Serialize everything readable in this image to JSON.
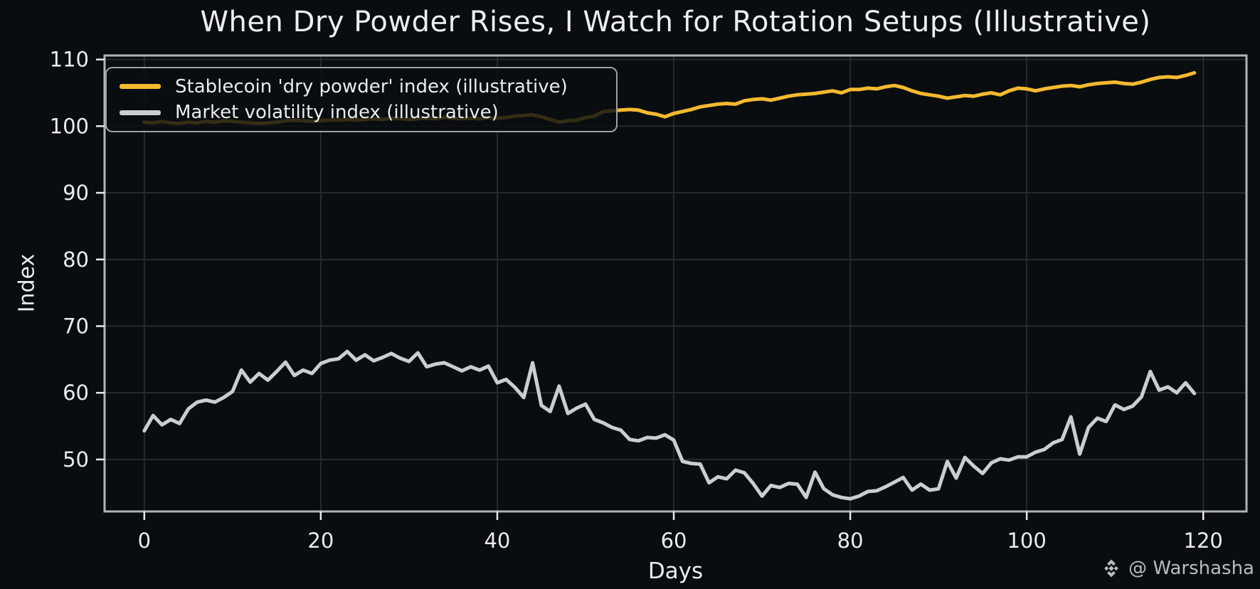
{
  "watermark": {
    "handle": "@ Warshasha",
    "icon": "binance-diamond-icon"
  },
  "colors": {
    "background": "#0a0d10",
    "grid": "#2a2f36",
    "spine": "#aeb4bc",
    "tick": "#e6e9ed",
    "text": "#e9ecef",
    "title": "#eceff2",
    "dry_powder_line": "#f3ba2f",
    "volatility_line": "#c9ced4",
    "watermark": "#b6bcc4",
    "legend_border": "#9aa1a9"
  },
  "chart_data": {
    "type": "line",
    "title": "When Dry Powder Rises, I Watch for Rotation Setups (Illustrative)",
    "xlabel": "Days",
    "ylabel": "Index",
    "x_ticks": [
      0,
      20,
      40,
      60,
      80,
      100,
      120
    ],
    "y_ticks": [
      50,
      60,
      70,
      80,
      90,
      100,
      110
    ],
    "x_range": [
      0,
      119
    ],
    "xlim": [
      -4.5,
      124.9
    ],
    "ylim": [
      42.2,
      110.6
    ],
    "grid": true,
    "legend_position": "upper-left",
    "series": [
      {
        "name": "Stablecoin 'dry powder' index (illustrative)",
        "color": "#f3ba2f",
        "values": [
          100.6,
          100.5,
          100.7,
          100.5,
          100.4,
          100.6,
          100.5,
          100.7,
          100.6,
          100.8,
          100.7,
          100.6,
          100.5,
          100.4,
          100.5,
          100.6,
          100.8,
          100.9,
          100.8,
          100.7,
          100.8,
          100.9,
          100.9,
          101.0,
          100.9,
          101.0,
          101.1,
          101.0,
          101.2,
          101.1,
          101.0,
          101.1,
          101.2,
          101.1,
          101.3,
          101.2,
          101.1,
          101.2,
          101.1,
          101.3,
          101.2,
          101.3,
          101.5,
          101.6,
          101.7,
          101.4,
          101.0,
          100.6,
          100.8,
          100.9,
          101.3,
          101.5,
          102.2,
          102.3,
          102.4,
          102.5,
          102.4,
          102.0,
          101.8,
          101.4,
          101.9,
          102.2,
          102.5,
          102.9,
          103.1,
          103.3,
          103.4,
          103.3,
          103.8,
          104.0,
          104.1,
          103.9,
          104.2,
          104.5,
          104.7,
          104.8,
          104.9,
          105.1,
          105.3,
          105.0,
          105.5,
          105.5,
          105.7,
          105.6,
          105.9,
          106.1,
          105.8,
          105.3,
          104.9,
          104.7,
          104.5,
          104.2,
          104.4,
          104.6,
          104.5,
          104.8,
          105.0,
          104.7,
          105.3,
          105.7,
          105.6,
          105.3,
          105.6,
          105.8,
          106.0,
          106.1,
          105.9,
          106.2,
          106.4,
          106.5,
          106.6,
          106.4,
          106.3,
          106.6,
          107.0,
          107.3,
          107.4,
          107.3,
          107.6,
          108.0
        ]
      },
      {
        "name": "Market volatility index (illustrative)",
        "color": "#c9ced4",
        "values": [
          54.3,
          56.6,
          55.2,
          56.0,
          55.4,
          57.6,
          58.6,
          58.9,
          58.6,
          59.3,
          60.2,
          63.4,
          61.6,
          62.9,
          61.9,
          63.2,
          64.6,
          62.6,
          63.4,
          62.9,
          64.4,
          64.9,
          65.1,
          66.2,
          64.9,
          65.7,
          64.8,
          65.3,
          65.9,
          65.2,
          64.7,
          66.0,
          63.9,
          64.3,
          64.5,
          63.9,
          63.3,
          63.9,
          63.4,
          64.0,
          61.5,
          62.0,
          60.8,
          59.3,
          64.5,
          58.1,
          57.2,
          61.0,
          56.9,
          57.7,
          58.3,
          56.0,
          55.5,
          54.8,
          54.4,
          53.0,
          52.8,
          53.3,
          53.2,
          53.7,
          52.9,
          49.7,
          49.4,
          49.3,
          46.5,
          47.4,
          47.1,
          48.4,
          48.0,
          46.4,
          44.5,
          46.1,
          45.8,
          46.4,
          46.3,
          44.3,
          48.1,
          45.6,
          44.7,
          44.3,
          44.1,
          44.5,
          45.2,
          45.3,
          45.9,
          46.6,
          47.3,
          45.4,
          46.3,
          45.4,
          45.6,
          49.7,
          47.2,
          50.3,
          49.0,
          47.9,
          49.5,
          50.1,
          49.9,
          50.4,
          50.4,
          51.1,
          51.5,
          52.5,
          53.0,
          56.4,
          50.8,
          54.8,
          56.2,
          55.7,
          58.2,
          57.5,
          58.0,
          59.4,
          63.2,
          60.4,
          60.9,
          60.0,
          61.5,
          59.9
        ]
      }
    ]
  }
}
